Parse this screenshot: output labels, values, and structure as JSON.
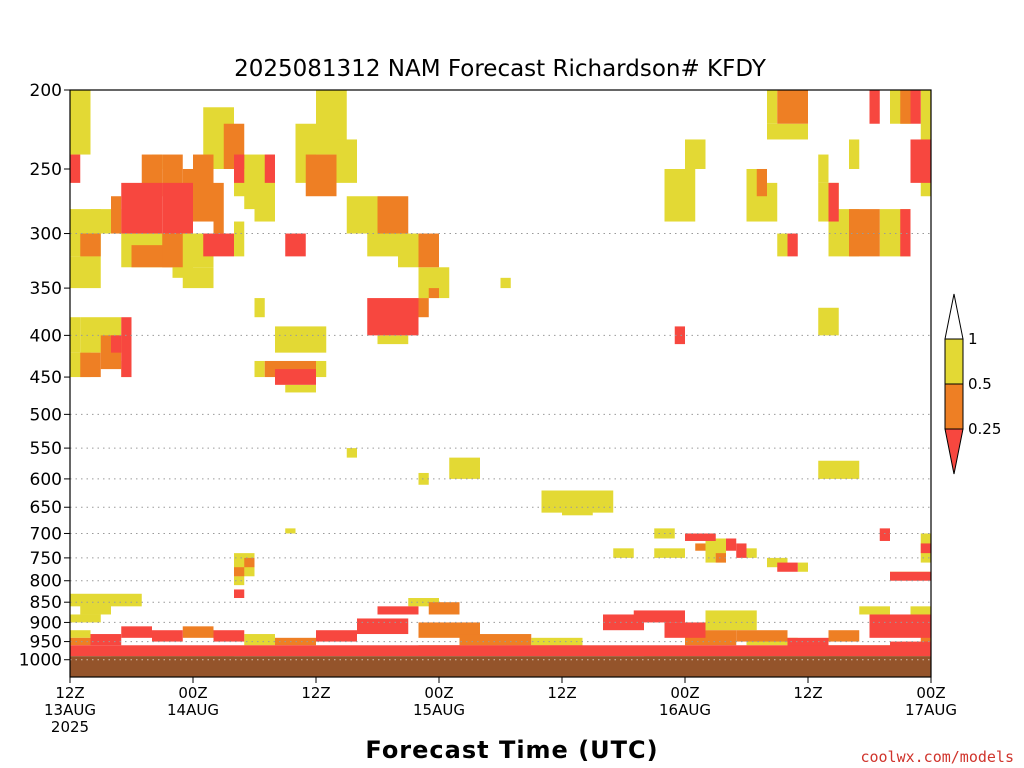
{
  "chart_data": {
    "type": "heatmap",
    "title": "2025081312 NAM Forecast Richardson# KFDY",
    "xlabel": "Forecast Time (UTC)",
    "x_ticks": [
      {
        "t": 0,
        "lines": [
          "12Z",
          "13AUG",
          "2025"
        ]
      },
      {
        "t": 12,
        "lines": [
          "00Z",
          "14AUG"
        ]
      },
      {
        "t": 24,
        "lines": [
          "12Z"
        ]
      },
      {
        "t": 36,
        "lines": [
          "00Z",
          "15AUG"
        ]
      },
      {
        "t": 48,
        "lines": [
          "12Z"
        ]
      },
      {
        "t": 60,
        "lines": [
          "00Z",
          "16AUG"
        ]
      },
      {
        "t": 72,
        "lines": [
          "12Z"
        ]
      },
      {
        "t": 84,
        "lines": [
          "00Z",
          "17AUG"
        ]
      }
    ],
    "xlim": [
      0,
      84
    ],
    "y_ticks": [
      "200",
      "250",
      "300",
      "350",
      "400",
      "450",
      "500",
      "550",
      "600",
      "650",
      "700",
      "750",
      "800",
      "850",
      "900",
      "950",
      "1000"
    ],
    "ylim": [
      1000,
      200
    ],
    "y_gridlines": [
      300,
      400,
      500,
      550,
      600,
      650,
      700,
      750,
      800,
      850,
      900,
      950,
      1000
    ],
    "legend": {
      "placement": "right",
      "labels": [
        "1",
        "0.5",
        "0.25"
      ],
      "colors": {
        "high": "#ffffff",
        "mid_high": "#e3d934",
        "mid_low": "#ee7f24",
        "low": "#f7473f"
      }
    },
    "surface_color": "#94542b",
    "surface_top_hpa": 990,
    "series": [
      {
        "name": "0.5 - 1",
        "color": "#e3d934"
      },
      {
        "name": "0.25 - 0.5",
        "color": "#ee7f24"
      },
      {
        "name": "< 0.25",
        "color": "#f7473f"
      }
    ],
    "cells": [
      [
        0,
        2,
        200,
        240,
        1
      ],
      [
        0,
        1,
        240,
        260,
        3
      ],
      [
        0,
        3,
        280,
        320,
        1
      ],
      [
        1,
        3,
        300,
        320,
        2
      ],
      [
        0,
        3,
        320,
        350,
        1
      ],
      [
        2,
        5,
        280,
        300,
        1
      ],
      [
        5,
        9,
        260,
        300,
        3
      ],
      [
        4,
        5,
        270,
        300,
        2
      ],
      [
        9,
        12,
        260,
        300,
        3
      ],
      [
        7,
        9,
        240,
        270,
        2
      ],
      [
        8,
        9,
        240,
        250,
        1
      ],
      [
        9,
        11,
        240,
        270,
        2
      ],
      [
        11,
        12,
        250,
        270,
        2
      ],
      [
        12,
        14,
        240,
        290,
        2
      ],
      [
        13,
        16,
        210,
        250,
        1
      ],
      [
        15,
        17,
        220,
        250,
        2
      ],
      [
        16,
        17,
        240,
        260,
        3
      ],
      [
        14,
        15,
        260,
        300,
        2
      ],
      [
        12,
        13,
        300,
        320,
        1
      ],
      [
        5,
        14,
        300,
        330,
        1
      ],
      [
        6,
        10,
        310,
        330,
        2
      ],
      [
        9,
        11,
        300,
        330,
        2
      ],
      [
        13,
        16,
        300,
        320,
        3
      ],
      [
        10,
        12,
        320,
        340,
        1
      ],
      [
        11,
        14,
        330,
        350,
        1
      ],
      [
        16,
        18,
        240,
        270,
        1
      ],
      [
        16,
        17,
        290,
        320,
        1
      ],
      [
        18,
        20,
        240,
        290,
        1
      ],
      [
        19,
        20,
        240,
        260,
        3
      ],
      [
        17,
        18,
        260,
        280,
        1
      ],
      [
        21,
        23,
        300,
        320,
        3
      ],
      [
        22,
        24,
        220,
        260,
        1
      ],
      [
        24,
        27,
        200,
        240,
        1
      ],
      [
        23,
        26,
        240,
        270,
        2
      ],
      [
        26,
        28,
        230,
        260,
        1
      ],
      [
        27,
        30,
        270,
        300,
        1
      ],
      [
        29,
        32,
        280,
        320,
        1
      ],
      [
        30,
        33,
        270,
        300,
        2
      ],
      [
        32,
        34,
        300,
        330,
        1
      ],
      [
        34,
        36,
        300,
        330,
        2
      ],
      [
        34,
        36,
        330,
        360,
        1
      ],
      [
        35,
        36,
        350,
        360,
        2
      ],
      [
        36,
        37,
        330,
        360,
        1
      ],
      [
        29,
        34,
        360,
        400,
        3
      ],
      [
        30,
        33,
        400,
        410,
        1
      ],
      [
        34,
        35,
        360,
        380,
        2
      ],
      [
        42,
        43,
        340,
        350,
        1
      ],
      [
        18,
        19,
        360,
        380,
        1
      ],
      [
        0,
        1,
        380,
        420,
        1
      ],
      [
        0,
        2,
        420,
        450,
        1
      ],
      [
        1,
        5,
        380,
        420,
        1
      ],
      [
        1,
        3,
        420,
        450,
        2
      ],
      [
        3,
        5,
        400,
        440,
        2
      ],
      [
        4,
        5,
        400,
        420,
        3
      ],
      [
        5,
        6,
        380,
        450,
        3
      ],
      [
        5,
        6,
        430,
        450,
        1
      ],
      [
        20,
        25,
        390,
        420,
        1
      ],
      [
        18,
        19,
        430,
        450,
        1
      ],
      [
        19,
        24,
        430,
        450,
        2
      ],
      [
        20,
        24,
        440,
        460,
        3
      ],
      [
        24,
        25,
        430,
        450,
        1
      ],
      [
        21,
        24,
        460,
        470,
        1
      ],
      [
        59,
        60,
        390,
        410,
        3
      ],
      [
        68,
        69,
        200,
        220,
        1
      ],
      [
        69,
        72,
        200,
        220,
        2
      ],
      [
        68,
        72,
        220,
        230,
        1
      ],
      [
        78,
        79,
        200,
        220,
        3
      ],
      [
        80,
        82,
        200,
        220,
        1
      ],
      [
        81,
        82,
        200,
        220,
        2
      ],
      [
        82,
        83,
        200,
        220,
        3
      ],
      [
        83,
        84,
        200,
        240,
        1
      ],
      [
        82,
        84,
        230,
        260,
        3
      ],
      [
        83,
        84,
        240,
        270,
        1
      ],
      [
        60,
        62,
        230,
        250,
        1
      ],
      [
        58,
        61,
        250,
        290,
        1
      ],
      [
        66,
        68,
        250,
        290,
        1
      ],
      [
        67,
        68,
        250,
        270,
        2
      ],
      [
        68,
        69,
        260,
        290,
        1
      ],
      [
        73,
        75,
        260,
        290,
        1
      ],
      [
        74,
        75,
        260,
        290,
        3
      ],
      [
        74,
        77,
        280,
        320,
        1
      ],
      [
        76,
        79,
        280,
        320,
        2
      ],
      [
        79,
        82,
        280,
        320,
        1
      ],
      [
        81,
        82,
        280,
        320,
        3
      ],
      [
        73,
        74,
        240,
        260,
        1
      ],
      [
        76,
        77,
        230,
        250,
        1
      ],
      [
        69,
        70,
        300,
        320,
        1
      ],
      [
        70,
        71,
        300,
        320,
        3
      ],
      [
        73,
        75,
        370,
        400,
        1
      ],
      [
        27,
        28,
        550,
        565,
        1
      ],
      [
        37,
        40,
        565,
        600,
        1
      ],
      [
        34,
        35,
        590,
        610,
        1
      ],
      [
        46,
        53,
        620,
        660,
        1
      ],
      [
        48,
        51,
        650,
        665,
        1
      ],
      [
        21,
        22,
        690,
        700,
        1
      ],
      [
        57,
        59,
        690,
        710,
        1
      ],
      [
        62,
        64,
        710,
        735,
        1
      ],
      [
        64,
        65,
        710,
        735,
        3
      ],
      [
        61,
        62,
        720,
        735,
        2
      ],
      [
        53,
        55,
        730,
        750,
        1
      ],
      [
        57,
        60,
        730,
        750,
        1
      ],
      [
        62,
        64,
        730,
        760,
        1
      ],
      [
        63,
        64,
        740,
        760,
        2
      ],
      [
        60,
        63,
        700,
        715,
        3
      ],
      [
        65,
        66,
        720,
        750,
        3
      ],
      [
        66,
        67,
        730,
        750,
        1
      ],
      [
        68,
        70,
        750,
        770,
        1
      ],
      [
        69,
        71,
        760,
        780,
        3
      ],
      [
        71,
        72,
        760,
        780,
        1
      ],
      [
        73,
        77,
        570,
        600,
        1
      ],
      [
        79,
        80,
        690,
        715,
        3
      ],
      [
        83,
        84,
        700,
        760,
        1
      ],
      [
        83,
        84,
        720,
        740,
        3
      ],
      [
        80,
        84,
        780,
        800,
        3
      ],
      [
        80,
        84,
        780,
        790,
        1
      ],
      [
        16,
        18,
        740,
        790,
        1
      ],
      [
        16,
        17,
        770,
        790,
        2
      ],
      [
        17,
        18,
        750,
        770,
        2
      ],
      [
        16,
        17,
        790,
        810,
        1
      ],
      [
        16,
        17,
        820,
        840,
        3
      ],
      [
        0,
        7,
        830,
        860,
        1
      ],
      [
        1,
        4,
        850,
        880,
        1
      ],
      [
        0,
        3,
        880,
        900,
        1
      ],
      [
        0,
        2,
        920,
        940,
        1
      ],
      [
        0,
        2,
        940,
        960,
        2
      ],
      [
        2,
        5,
        930,
        960,
        3
      ],
      [
        5,
        8,
        910,
        940,
        3
      ],
      [
        8,
        11,
        920,
        950,
        3
      ],
      [
        11,
        14,
        910,
        940,
        2
      ],
      [
        14,
        17,
        920,
        950,
        3
      ],
      [
        17,
        20,
        930,
        960,
        1
      ],
      [
        20,
        24,
        940,
        960,
        2
      ],
      [
        24,
        28,
        920,
        950,
        3
      ],
      [
        28,
        33,
        890,
        930,
        3
      ],
      [
        30,
        34,
        860,
        880,
        3
      ],
      [
        33,
        36,
        840,
        860,
        1
      ],
      [
        35,
        38,
        850,
        880,
        2
      ],
      [
        34,
        40,
        900,
        940,
        2
      ],
      [
        38,
        45,
        930,
        960,
        2
      ],
      [
        45,
        50,
        940,
        960,
        1
      ],
      [
        52,
        56,
        880,
        920,
        3
      ],
      [
        55,
        60,
        870,
        900,
        3
      ],
      [
        58,
        62,
        900,
        940,
        3
      ],
      [
        60,
        65,
        920,
        960,
        2
      ],
      [
        62,
        67,
        870,
        920,
        1
      ],
      [
        66,
        71,
        940,
        960,
        1
      ],
      [
        65,
        70,
        920,
        950,
        2
      ],
      [
        70,
        74,
        940,
        970,
        3
      ],
      [
        77,
        80,
        860,
        880,
        1
      ],
      [
        78,
        84,
        880,
        940,
        3
      ],
      [
        74,
        77,
        920,
        950,
        2
      ],
      [
        80,
        84,
        950,
        970,
        3
      ],
      [
        82,
        84,
        860,
        900,
        1
      ],
      [
        83,
        84,
        930,
        960,
        2
      ],
      [
        0,
        84,
        960,
        990,
        3
      ],
      [
        4,
        16,
        965,
        990,
        2
      ],
      [
        34,
        50,
        960,
        985,
        2
      ],
      [
        56,
        76,
        965,
        990,
        2
      ],
      [
        74,
        84,
        960,
        990,
        2
      ]
    ]
  },
  "credit": "coolwx.com/models"
}
